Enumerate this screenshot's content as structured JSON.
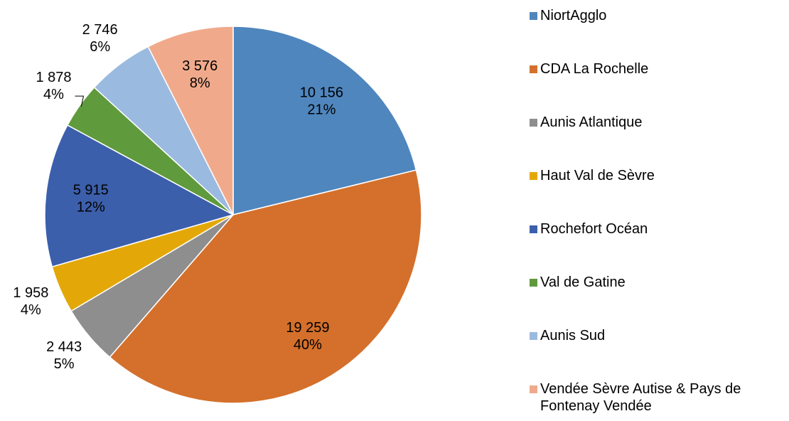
{
  "chart_data": {
    "type": "pie",
    "categories": [
      "NiortAgglo",
      "CDA La Rochelle",
      "Aunis Atlantique",
      "Haut Val de Sèvre",
      "Rochefort Océan",
      "Val de Gatine",
      "Aunis Sud",
      "Vendée Sèvre Autise & Pays de Fontenay Vendée"
    ],
    "values": [
      10156,
      19259,
      2443,
      1958,
      5915,
      1878,
      2746,
      3576
    ],
    "value_labels": [
      "10 156",
      "19 259",
      "2 443",
      "1 958",
      "5 915",
      "1 878",
      "2 746",
      "3 576"
    ],
    "percent_labels": [
      "21%",
      "40%",
      "5%",
      "4%",
      "12%",
      "4%",
      "6%",
      "8%"
    ],
    "colors": [
      "#4f86be",
      "#d4702b",
      "#8e8e8e",
      "#e3a808",
      "#3c5fab",
      "#5f9a3c",
      "#9bbae0",
      "#f0aa8b"
    ],
    "legend": "right"
  }
}
